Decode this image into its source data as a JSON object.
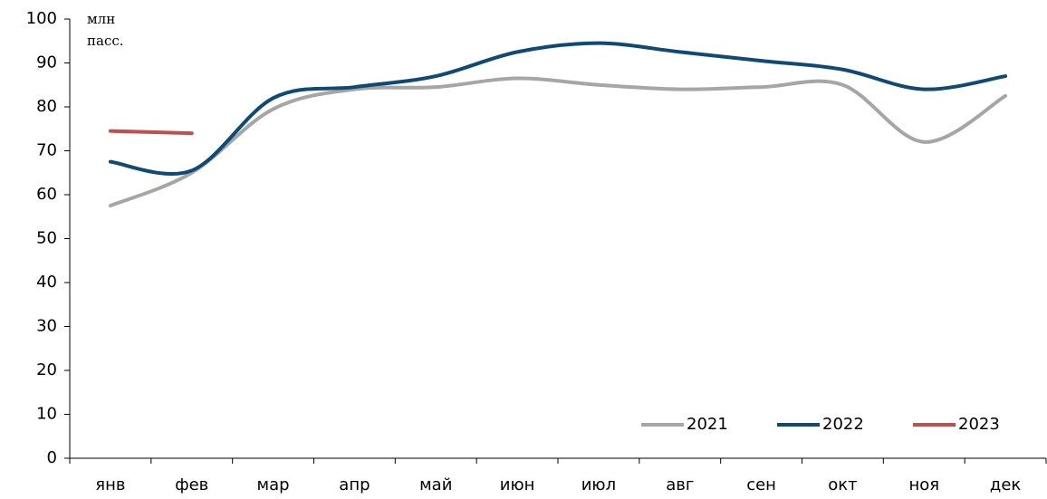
{
  "chart_data": {
    "type": "line",
    "y_label": [
      "млн",
      "пасс."
    ],
    "categories": [
      "янв",
      "фев",
      "мар",
      "апр",
      "май",
      "июн",
      "июл",
      "авг",
      "сен",
      "окт",
      "ноя",
      "дек"
    ],
    "series": [
      {
        "name": "2021",
        "color": "#a6a6a6",
        "values": [
          57.5,
          65,
          79.5,
          84,
          84.5,
          86.5,
          85,
          84,
          84.5,
          85,
          72,
          82.5
        ]
      },
      {
        "name": "2022",
        "color": "#0e4a75",
        "values": [
          67.5,
          65.5,
          82,
          84.5,
          87,
          92.5,
          94.5,
          92.5,
          90.5,
          88.5,
          84,
          87
        ]
      },
      {
        "name": "2023",
        "color": "#c0504d",
        "values": [
          74.5,
          74,
          null,
          null,
          null,
          null,
          null,
          null,
          null,
          null,
          null,
          null
        ]
      }
    ],
    "ylim": [
      0,
      100
    ],
    "yticks": [
      0,
      10,
      20,
      30,
      40,
      50,
      60,
      70,
      80,
      90,
      100
    ],
    "legend": "lower right"
  }
}
